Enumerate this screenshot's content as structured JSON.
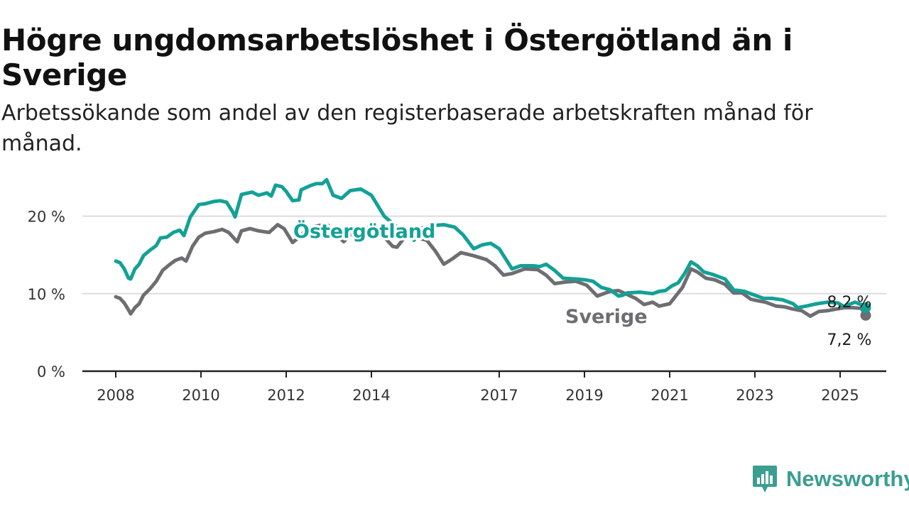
{
  "title": "Högre ungdomsarbetslöshet i Östergötland än i Sverige",
  "subtitle": "Arbetssökande som andel av den registerbaserade arbetskraften månad för månad.",
  "brand": {
    "name": "Newsworthy",
    "icon": "chart-bubble-icon"
  },
  "colors": {
    "ostergotland": "#13a196",
    "sverige": "#6d6d72",
    "grid": "#dddddd",
    "axis": "#222222"
  },
  "chart_data": {
    "type": "line",
    "x_unit": "year",
    "xlim": [
      2007.9,
      2025.6
    ],
    "ylim": [
      0,
      25
    ],
    "y_ticks": [
      0,
      10,
      20
    ],
    "y_tick_labels": [
      "0 %",
      "10 %",
      "20 %"
    ],
    "x_ticks": [
      2008,
      2010,
      2012,
      2014,
      2017,
      2019,
      2021,
      2023,
      2025
    ],
    "x_tick_labels": [
      "2008",
      "2010",
      "2012",
      "2014",
      "2017",
      "2019",
      "2021",
      "2023",
      "2025"
    ],
    "grid": "horizontal",
    "series": [
      {
        "name": "Östergötland",
        "end_label": "8,2 %",
        "points": [
          [
            2008.0,
            14.2
          ],
          [
            2008.1,
            14.0
          ],
          [
            2008.2,
            13.2
          ],
          [
            2008.3,
            12.0
          ],
          [
            2008.35,
            11.9
          ],
          [
            2008.45,
            13.2
          ],
          [
            2008.55,
            13.8
          ],
          [
            2008.65,
            14.9
          ],
          [
            2008.8,
            15.6
          ],
          [
            2008.95,
            16.2
          ],
          [
            2009.05,
            17.2
          ],
          [
            2009.2,
            17.3
          ],
          [
            2009.35,
            17.9
          ],
          [
            2009.5,
            18.2
          ],
          [
            2009.6,
            17.5
          ],
          [
            2009.75,
            19.9
          ],
          [
            2009.95,
            21.5
          ],
          [
            2010.1,
            21.6
          ],
          [
            2010.3,
            21.9
          ],
          [
            2010.45,
            22.0
          ],
          [
            2010.6,
            21.8
          ],
          [
            2010.75,
            20.5
          ],
          [
            2010.8,
            19.9
          ],
          [
            2010.95,
            22.8
          ],
          [
            2011.2,
            23.1
          ],
          [
            2011.35,
            22.7
          ],
          [
            2011.55,
            23.0
          ],
          [
            2011.65,
            22.6
          ],
          [
            2011.75,
            24.0
          ],
          [
            2011.9,
            23.8
          ],
          [
            2012.0,
            23.2
          ],
          [
            2012.15,
            22.0
          ],
          [
            2012.3,
            22.1
          ],
          [
            2012.35,
            23.4
          ],
          [
            2012.55,
            23.9
          ],
          [
            2012.7,
            24.2
          ],
          [
            2012.85,
            24.2
          ],
          [
            2012.95,
            24.7
          ],
          [
            2013.1,
            22.7
          ],
          [
            2013.3,
            22.3
          ],
          [
            2013.5,
            23.3
          ],
          [
            2013.75,
            23.5
          ],
          [
            2014.0,
            22.7
          ],
          [
            2014.3,
            20.0
          ],
          [
            2014.6,
            18.6
          ],
          [
            2014.85,
            18.3
          ],
          [
            2015.0,
            16.9
          ],
          [
            2015.2,
            18.5
          ],
          [
            2015.45,
            18.8
          ],
          [
            2015.7,
            18.9
          ],
          [
            2015.95,
            18.6
          ],
          [
            2016.15,
            17.6
          ],
          [
            2016.4,
            15.8
          ],
          [
            2016.6,
            16.3
          ],
          [
            2016.8,
            16.5
          ],
          [
            2017.0,
            15.8
          ],
          [
            2017.3,
            13.2
          ],
          [
            2017.5,
            13.6
          ],
          [
            2017.8,
            13.6
          ],
          [
            2017.95,
            13.5
          ],
          [
            2018.1,
            13.8
          ],
          [
            2018.3,
            13.0
          ],
          [
            2018.5,
            12.0
          ],
          [
            2018.8,
            11.9
          ],
          [
            2019.0,
            11.8
          ],
          [
            2019.2,
            11.6
          ],
          [
            2019.4,
            10.8
          ],
          [
            2019.6,
            10.5
          ],
          [
            2019.8,
            9.7
          ],
          [
            2019.9,
            9.8
          ],
          [
            2020.0,
            10.1
          ],
          [
            2020.3,
            10.2
          ],
          [
            2020.6,
            10.0
          ],
          [
            2020.75,
            10.3
          ],
          [
            2020.9,
            10.4
          ],
          [
            2021.05,
            11.0
          ],
          [
            2021.2,
            11.4
          ],
          [
            2021.35,
            12.6
          ],
          [
            2021.5,
            14.1
          ],
          [
            2021.65,
            13.6
          ],
          [
            2021.8,
            12.8
          ],
          [
            2022.0,
            12.5
          ],
          [
            2022.3,
            11.9
          ],
          [
            2022.5,
            10.5
          ],
          [
            2022.75,
            10.3
          ],
          [
            2023.0,
            9.8
          ],
          [
            2023.2,
            9.4
          ],
          [
            2023.4,
            9.4
          ],
          [
            2023.65,
            9.2
          ],
          [
            2023.9,
            8.7
          ],
          [
            2024.0,
            8.2
          ],
          [
            2024.2,
            8.4
          ],
          [
            2024.45,
            8.7
          ],
          [
            2024.7,
            8.9
          ],
          [
            2024.95,
            8.8
          ],
          [
            2025.1,
            8.3
          ],
          [
            2025.2,
            8.6
          ],
          [
            2025.35,
            8.9
          ],
          [
            2025.5,
            8.6
          ],
          [
            2025.6,
            8.2
          ]
        ]
      },
      {
        "name": "Sverige",
        "end_label": "7,2 %",
        "points": [
          [
            2008.0,
            9.6
          ],
          [
            2008.1,
            9.4
          ],
          [
            2008.2,
            8.8
          ],
          [
            2008.3,
            7.9
          ],
          [
            2008.35,
            7.4
          ],
          [
            2008.45,
            8.2
          ],
          [
            2008.55,
            8.7
          ],
          [
            2008.65,
            9.8
          ],
          [
            2008.8,
            10.6
          ],
          [
            2008.95,
            11.6
          ],
          [
            2009.1,
            13.0
          ],
          [
            2009.25,
            13.7
          ],
          [
            2009.4,
            14.3
          ],
          [
            2009.55,
            14.6
          ],
          [
            2009.65,
            14.2
          ],
          [
            2009.8,
            16.1
          ],
          [
            2009.95,
            17.3
          ],
          [
            2010.1,
            17.8
          ],
          [
            2010.3,
            18.0
          ],
          [
            2010.5,
            18.3
          ],
          [
            2010.65,
            17.9
          ],
          [
            2010.85,
            16.7
          ],
          [
            2010.95,
            18.1
          ],
          [
            2011.15,
            18.4
          ],
          [
            2011.35,
            18.1
          ],
          [
            2011.6,
            17.9
          ],
          [
            2011.8,
            18.9
          ],
          [
            2011.95,
            18.4
          ],
          [
            2012.15,
            16.6
          ],
          [
            2012.3,
            17.3
          ],
          [
            2012.5,
            18.4
          ],
          [
            2012.7,
            18.7
          ],
          [
            2012.95,
            19.0
          ],
          [
            2013.1,
            18.1
          ],
          [
            2013.35,
            16.7
          ],
          [
            2013.5,
            17.6
          ],
          [
            2013.7,
            18.4
          ],
          [
            2013.9,
            18.5
          ],
          [
            2014.1,
            18.2
          ],
          [
            2014.3,
            17.3
          ],
          [
            2014.5,
            16.1
          ],
          [
            2014.6,
            16.0
          ],
          [
            2014.8,
            17.4
          ],
          [
            2015.0,
            17.3
          ],
          [
            2015.3,
            16.9
          ],
          [
            2015.5,
            15.5
          ],
          [
            2015.7,
            13.8
          ],
          [
            2015.9,
            14.5
          ],
          [
            2016.1,
            15.3
          ],
          [
            2016.4,
            14.9
          ],
          [
            2016.7,
            14.4
          ],
          [
            2016.9,
            13.6
          ],
          [
            2017.1,
            12.4
          ],
          [
            2017.3,
            12.6
          ],
          [
            2017.6,
            13.2
          ],
          [
            2017.9,
            13.1
          ],
          [
            2018.1,
            12.4
          ],
          [
            2018.3,
            11.3
          ],
          [
            2018.55,
            11.5
          ],
          [
            2018.8,
            11.6
          ],
          [
            2019.05,
            11.1
          ],
          [
            2019.3,
            9.7
          ],
          [
            2019.6,
            10.3
          ],
          [
            2019.8,
            10.4
          ],
          [
            2020.0,
            9.9
          ],
          [
            2020.2,
            9.4
          ],
          [
            2020.4,
            8.6
          ],
          [
            2020.6,
            8.9
          ],
          [
            2020.75,
            8.4
          ],
          [
            2021.0,
            8.7
          ],
          [
            2021.3,
            10.8
          ],
          [
            2021.5,
            13.2
          ],
          [
            2021.65,
            12.8
          ],
          [
            2021.85,
            12.0
          ],
          [
            2022.05,
            11.8
          ],
          [
            2022.3,
            11.2
          ],
          [
            2022.5,
            10.1
          ],
          [
            2022.7,
            10.1
          ],
          [
            2022.9,
            9.3
          ],
          [
            2023.05,
            9.1
          ],
          [
            2023.25,
            8.9
          ],
          [
            2023.5,
            8.4
          ],
          [
            2023.7,
            8.3
          ],
          [
            2023.9,
            8.0
          ],
          [
            2024.1,
            7.8
          ],
          [
            2024.3,
            7.1
          ],
          [
            2024.5,
            7.7
          ],
          [
            2024.7,
            7.8
          ],
          [
            2024.9,
            8.0
          ],
          [
            2025.1,
            8.2
          ],
          [
            2025.3,
            8.2
          ],
          [
            2025.5,
            8.1
          ],
          [
            2025.6,
            7.2
          ]
        ]
      }
    ]
  }
}
